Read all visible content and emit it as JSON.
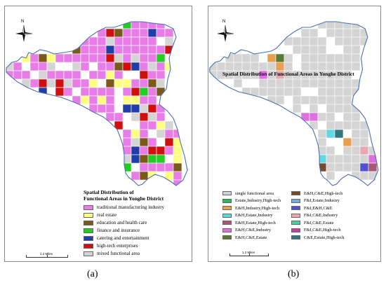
{
  "panel_a": {
    "caption": "(a)",
    "north_label": "N",
    "scale_label": "1.2 Miles",
    "legend_title_line1": "Spatial Distribution of",
    "legend_title_line2": "Functional Areas in Yonghe District",
    "legend": [
      {
        "label": "traditional manufacturing industry",
        "color": "#e87de8"
      },
      {
        "label": "real estate",
        "color": "#ffff80"
      },
      {
        "label": "education and health care",
        "color": "#7a5a1a"
      },
      {
        "label": "finance and insurance",
        "color": "#22cc22"
      },
      {
        "label": "catering and entertainment",
        "color": "#1f3ea8"
      },
      {
        "label": "high-tech enterprises",
        "color": "#d01010"
      },
      {
        "label": "mixed functional area",
        "color": "#d4d4d4"
      }
    ]
  },
  "panel_b": {
    "caption": "(b)",
    "north_label": "N",
    "scale_label": "1.2 Miles",
    "legend_title_line1": "Spatial Distribution of Functional Areas in Yonghe District",
    "legend": [
      {
        "label": "single functional area",
        "color": "#d4d4d4"
      },
      {
        "label": "Estate,Industry,High-tech",
        "color": "#22bb55"
      },
      {
        "label": "E&H,Industry,High-tech",
        "color": "#e8a050"
      },
      {
        "label": "E&H,Estate,Industry",
        "color": "#60d8e8"
      },
      {
        "label": "E&H,Estate,High-tech",
        "color": "#a85870"
      },
      {
        "label": "E&H,C&E,Industry",
        "color": "#e070e0"
      },
      {
        "label": "E&H,C&E,Estate",
        "color": "#5a7a30"
      },
      {
        "label": "E&H,C&E,High-tech",
        "color": "#7a4a30"
      },
      {
        "label": "F&I,Estate,Industry",
        "color": "#7aa8e0"
      },
      {
        "label": "F&I,E&H,C&E",
        "color": "#5050d0"
      },
      {
        "label": "F&I,C&E,Industry",
        "color": "#e8a8b0"
      },
      {
        "label": "F&I,C&E,Estate",
        "color": "#50c8a0"
      },
      {
        "label": "F&I,C&E,High-tech",
        "color": "#c040a0"
      },
      {
        "label": "C&E,Estate,High-tech",
        "color": "#307880"
      }
    ]
  }
}
